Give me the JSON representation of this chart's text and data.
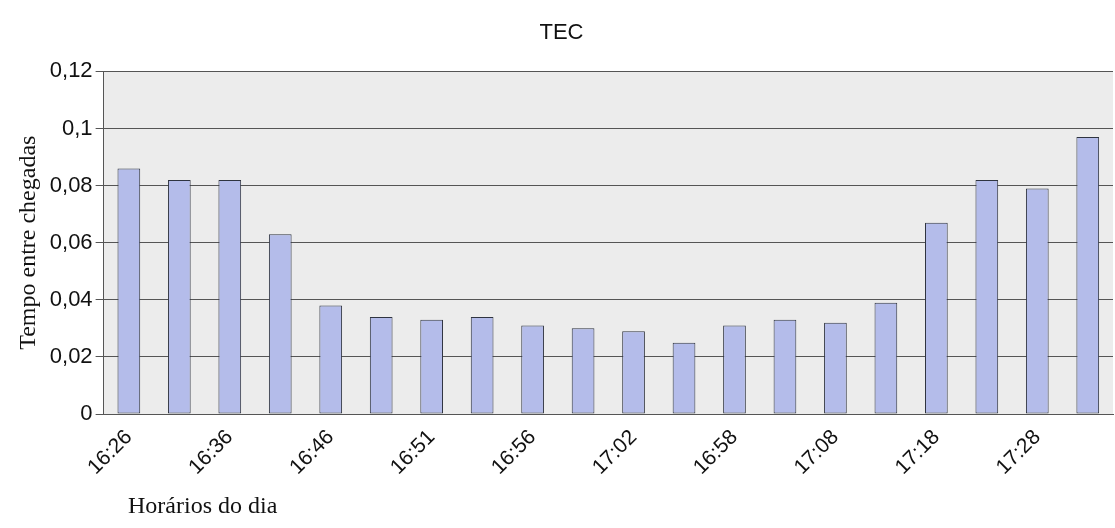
{
  "chart_data": {
    "type": "bar",
    "title": "TEC",
    "xlabel": "Horários do dia",
    "ylabel": "Tempo entre chegadas",
    "categories": [
      "16:26",
      null,
      "16:36",
      null,
      "16:46",
      null,
      "16:51",
      null,
      "16:56",
      null,
      "17:02",
      null,
      "16:58",
      null,
      "17:08",
      null,
      "17:18",
      null,
      "17:28",
      null
    ],
    "values": [
      0.086,
      0.082,
      0.082,
      0.063,
      0.038,
      0.034,
      0.033,
      0.034,
      0.031,
      0.03,
      0.029,
      0.025,
      0.031,
      0.033,
      0.032,
      0.039,
      0.067,
      0.082,
      0.079,
      0.097
    ],
    "color": "#b4bcea",
    "ylim": [
      0,
      0.12
    ],
    "yticks": [
      0,
      {
        "value": 0.02,
        "label": "0,02"
      },
      {
        "value": 0.04,
        "label": "0,04"
      },
      {
        "value": 0.06,
        "label": "0,06"
      },
      {
        "value": 0.08,
        "label": "0,08"
      },
      {
        "value": 0.1,
        "label": "0,1"
      },
      {
        "value": 0.12,
        "label": "0,12"
      }
    ],
    "grid": "y",
    "legend": false
  }
}
